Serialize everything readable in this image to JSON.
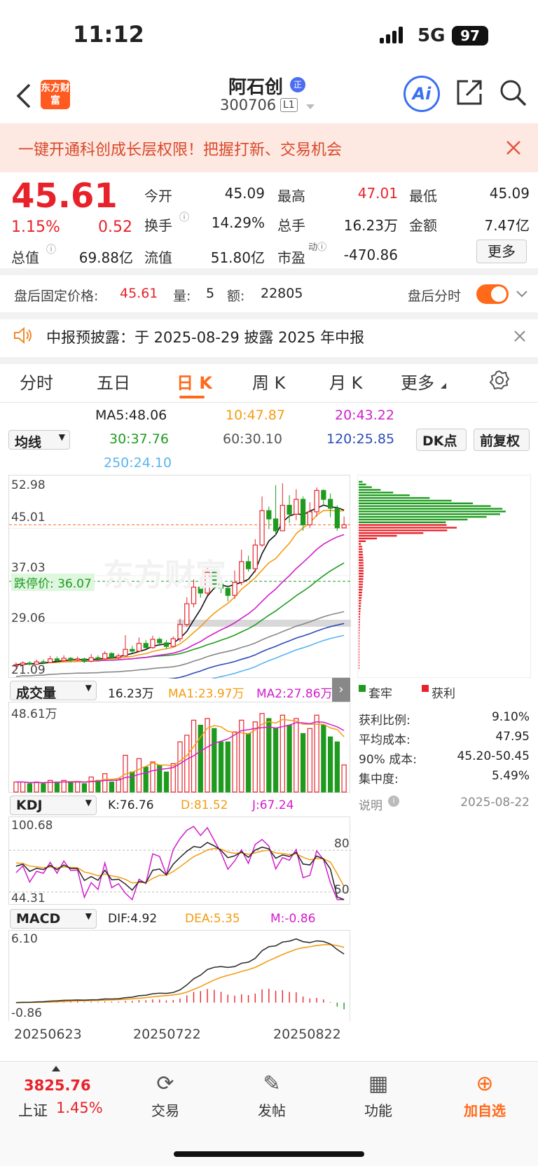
{
  "status": {
    "time": "11:12",
    "network": "5G",
    "battery": "97"
  },
  "nav": {
    "title": "阿石创",
    "code": "300706",
    "level": "L1",
    "logo": "东方财富",
    "ai": "Ai"
  },
  "banner": {
    "text": "一键开通科创成长层权限！把握打新、交易机会"
  },
  "quote": {
    "price": "45.61",
    "pct": "1.15%",
    "chg": "0.52",
    "cells": [
      {
        "label": "今开",
        "value": "45.09",
        "color": "#222"
      },
      {
        "label": "最高",
        "value": "47.01",
        "color": "#e8222a"
      },
      {
        "label": "最低",
        "value": "45.09",
        "color": "#222"
      },
      {
        "label": "换手",
        "value": "14.29%",
        "color": "#222"
      },
      {
        "label": "总手",
        "value": "16.23万",
        "color": "#222"
      },
      {
        "label": "金额",
        "value": "7.47亿",
        "color": "#222"
      },
      {
        "label": "流值",
        "value": "51.80亿",
        "color": "#222"
      },
      {
        "label": "市盈",
        "value": "-470.86",
        "color": "#222"
      }
    ],
    "zongzhi_label": "总值",
    "zongzhi_value": "69.88亿",
    "more": "更多"
  },
  "after": {
    "label": "盘后固定价格:",
    "price": "45.61",
    "vol_label": "量:",
    "vol": "5",
    "amt_label": "额:",
    "amt": "22805",
    "switch_label": "盘后分时"
  },
  "notice": {
    "text": "中报预披露：于 2025-08-29 披露 2025 年中报"
  },
  "tabs": [
    "分时",
    "五日",
    "日 K",
    "周 K",
    "月 K",
    "更多"
  ],
  "ma": {
    "selector": "均线",
    "ma5": "MA5:48.06",
    "ma10": "10:47.87",
    "ma20": "20:43.22",
    "ma30": "30:37.76",
    "ma60": "60:30.10",
    "ma120": "120:25.85",
    "ma250": "250:24.10",
    "dk": "DK点",
    "fq": "前复权"
  },
  "kline": {
    "y_top": "52.98",
    "y_mid1": "45.01",
    "y_mid2": "37.03",
    "y_mid3": "29.06",
    "y_bot": "21.09",
    "limit_label": "跌停价:",
    "limit": "36.07",
    "watermark": "东方财富"
  },
  "volume": {
    "selector": "成交量",
    "total": "16.23万",
    "ma1": "MA1:23.97万",
    "ma2": "MA2:27.86万",
    "y_top": "48.61万"
  },
  "kdj": {
    "selector": "KDJ",
    "k": "K:76.76",
    "d": "D:81.52",
    "j": "J:67.24",
    "y_top": "100.68",
    "y_bot": "44.31",
    "l80": "80",
    "l50": "50"
  },
  "macd": {
    "selector": "MACD",
    "dif": "DIF:4.92",
    "dea": "DEA:5.35",
    "m": "M:-0.86",
    "y_top": "6.10",
    "y_bot": "-0.86"
  },
  "dates": [
    "20250623",
    "20250722",
    "20250822"
  ],
  "chip": {
    "legend_trap": "套牢",
    "legend_profit": "获利",
    "rows": [
      {
        "label": "获利比例:",
        "value": "9.10%"
      },
      {
        "label": "平均成本:",
        "value": "47.95"
      },
      {
        "label": "90% 成本:",
        "value": "45.20-50.45"
      },
      {
        "label": "集中度:",
        "value": "5.49%"
      }
    ],
    "note": "说明",
    "date": "2025-08-22"
  },
  "bottom": {
    "index_value": "3825.76",
    "index_name": "上证",
    "index_pct": "1.45%",
    "items": [
      "交易",
      "发帖",
      "功能",
      "加自选"
    ]
  },
  "colors": {
    "up": "#e8222a",
    "down": "#1e9b1e",
    "accent": "#ff6a1a"
  },
  "chart_data": {
    "type": "candlestick",
    "ylim": [
      21.09,
      52.98
    ],
    "candles": [
      [
        21.8,
        22.0,
        22.4,
        21.5
      ],
      [
        22.0,
        22.3,
        22.6,
        21.8
      ],
      [
        22.3,
        22.1,
        22.6,
        21.9
      ],
      [
        22.1,
        22.5,
        22.9,
        22.0
      ],
      [
        22.5,
        22.4,
        22.9,
        22.1
      ],
      [
        22.4,
        23.0,
        23.5,
        22.3
      ],
      [
        23.0,
        22.7,
        23.4,
        22.4
      ],
      [
        22.7,
        23.1,
        23.6,
        22.5
      ],
      [
        23.1,
        22.8,
        23.3,
        22.4
      ],
      [
        22.8,
        23.0,
        23.4,
        22.6
      ],
      [
        23.0,
        22.6,
        23.2,
        22.3
      ],
      [
        22.6,
        23.2,
        23.8,
        22.4
      ],
      [
        23.2,
        23.0,
        23.6,
        22.7
      ],
      [
        23.0,
        23.9,
        24.3,
        22.9
      ],
      [
        23.9,
        23.2,
        24.1,
        23.0
      ],
      [
        23.2,
        23.5,
        23.9,
        22.9
      ],
      [
        23.5,
        24.6,
        27.0,
        23.3
      ],
      [
        24.6,
        24.3,
        25.2,
        24.0
      ],
      [
        24.3,
        25.6,
        26.6,
        24.2
      ],
      [
        25.6,
        24.9,
        26.2,
        24.6
      ],
      [
        24.9,
        26.3,
        26.9,
        24.7
      ],
      [
        26.3,
        25.7,
        26.6,
        25.2
      ],
      [
        25.7,
        25.1,
        26.2,
        24.7
      ],
      [
        25.1,
        26.4,
        26.8,
        25.0
      ],
      [
        26.4,
        28.8,
        29.8,
        25.9
      ],
      [
        28.8,
        32.3,
        33.4,
        28.4
      ],
      [
        32.3,
        35.1,
        36.4,
        31.7
      ],
      [
        35.1,
        34.1,
        35.8,
        33.3
      ],
      [
        34.1,
        37.6,
        38.6,
        33.7
      ],
      [
        37.6,
        35.6,
        38.2,
        34.7
      ],
      [
        35.6,
        34.9,
        36.6,
        34.1
      ],
      [
        34.9,
        33.7,
        35.4,
        32.7
      ],
      [
        33.7,
        35.9,
        37.9,
        33.1
      ],
      [
        35.9,
        39.4,
        41.4,
        35.4
      ],
      [
        39.4,
        38.2,
        40.4,
        37.7
      ],
      [
        38.2,
        42.2,
        43.2,
        37.6
      ],
      [
        42.2,
        48.0,
        50.4,
        41.9
      ],
      [
        48.0,
        46.6,
        48.7,
        44.9
      ],
      [
        46.6,
        44.6,
        52.3,
        43.8
      ],
      [
        44.6,
        48.9,
        52.6,
        44.6
      ],
      [
        48.9,
        47.4,
        50.6,
        45.9
      ],
      [
        47.4,
        49.9,
        51.6,
        46.4
      ],
      [
        49.9,
        45.6,
        50.4,
        44.6
      ],
      [
        45.6,
        47.8,
        49.4,
        45.1
      ],
      [
        47.8,
        51.4,
        51.9,
        47.0
      ],
      [
        51.4,
        49.9,
        51.6,
        48.9
      ],
      [
        49.9,
        48.4,
        50.9,
        46.9
      ],
      [
        48.4,
        45.1,
        48.9,
        44.6
      ],
      [
        45.09,
        45.61,
        47.01,
        45.09
      ]
    ],
    "volumes": [
      6,
      6,
      5,
      6,
      5,
      7,
      6,
      7,
      6,
      6,
      5,
      9,
      7,
      11,
      6,
      8,
      22,
      12,
      20,
      15,
      18,
      16,
      12,
      17,
      30,
      34,
      43,
      40,
      44,
      38,
      30,
      30,
      36,
      43,
      35,
      42,
      47,
      44,
      38,
      46,
      40,
      44,
      35,
      38,
      46,
      40,
      33,
      30,
      16.23
    ]
  }
}
